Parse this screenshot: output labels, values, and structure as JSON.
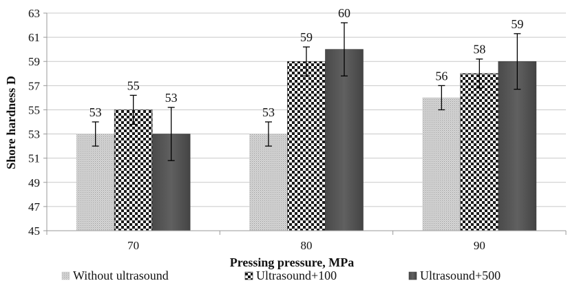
{
  "chart_data": {
    "type": "bar",
    "title": "",
    "xlabel": "Pressing pressure, MPa",
    "ylabel": "Shore hardness D",
    "categories": [
      "70",
      "80",
      "90"
    ],
    "ylim": [
      45,
      63
    ],
    "yticks": [
      45,
      47,
      49,
      51,
      53,
      55,
      57,
      59,
      61,
      63
    ],
    "grid": true,
    "legend_position": "bottom",
    "series": [
      {
        "name": "Without ultrasound",
        "pattern": "dots",
        "values": [
          53,
          53,
          56
        ],
        "labels": [
          "53",
          "53",
          "56"
        ],
        "error": [
          1,
          1,
          1
        ]
      },
      {
        "name": "Ultrasound+100",
        "pattern": "checker",
        "values": [
          55,
          59,
          58
        ],
        "labels": [
          "55",
          "59",
          "58"
        ],
        "error": [
          1.2,
          1.2,
          1.2
        ]
      },
      {
        "name": "Ultrasound+500",
        "pattern": "solid",
        "values": [
          53,
          60,
          59
        ],
        "labels": [
          "53",
          "60",
          "59"
        ],
        "error": [
          2.2,
          2.2,
          2.3
        ]
      }
    ]
  },
  "colors": {
    "dots_fill": "#d6d6d6",
    "dots_dot": "#9a9a9a",
    "checker_dark": "#1a1a1a",
    "checker_light": "#ffffff",
    "solid_fill": "#555555",
    "solid_edge": "#3a3a3a",
    "gridline": "#c8c8c8",
    "axis": "#999999"
  }
}
